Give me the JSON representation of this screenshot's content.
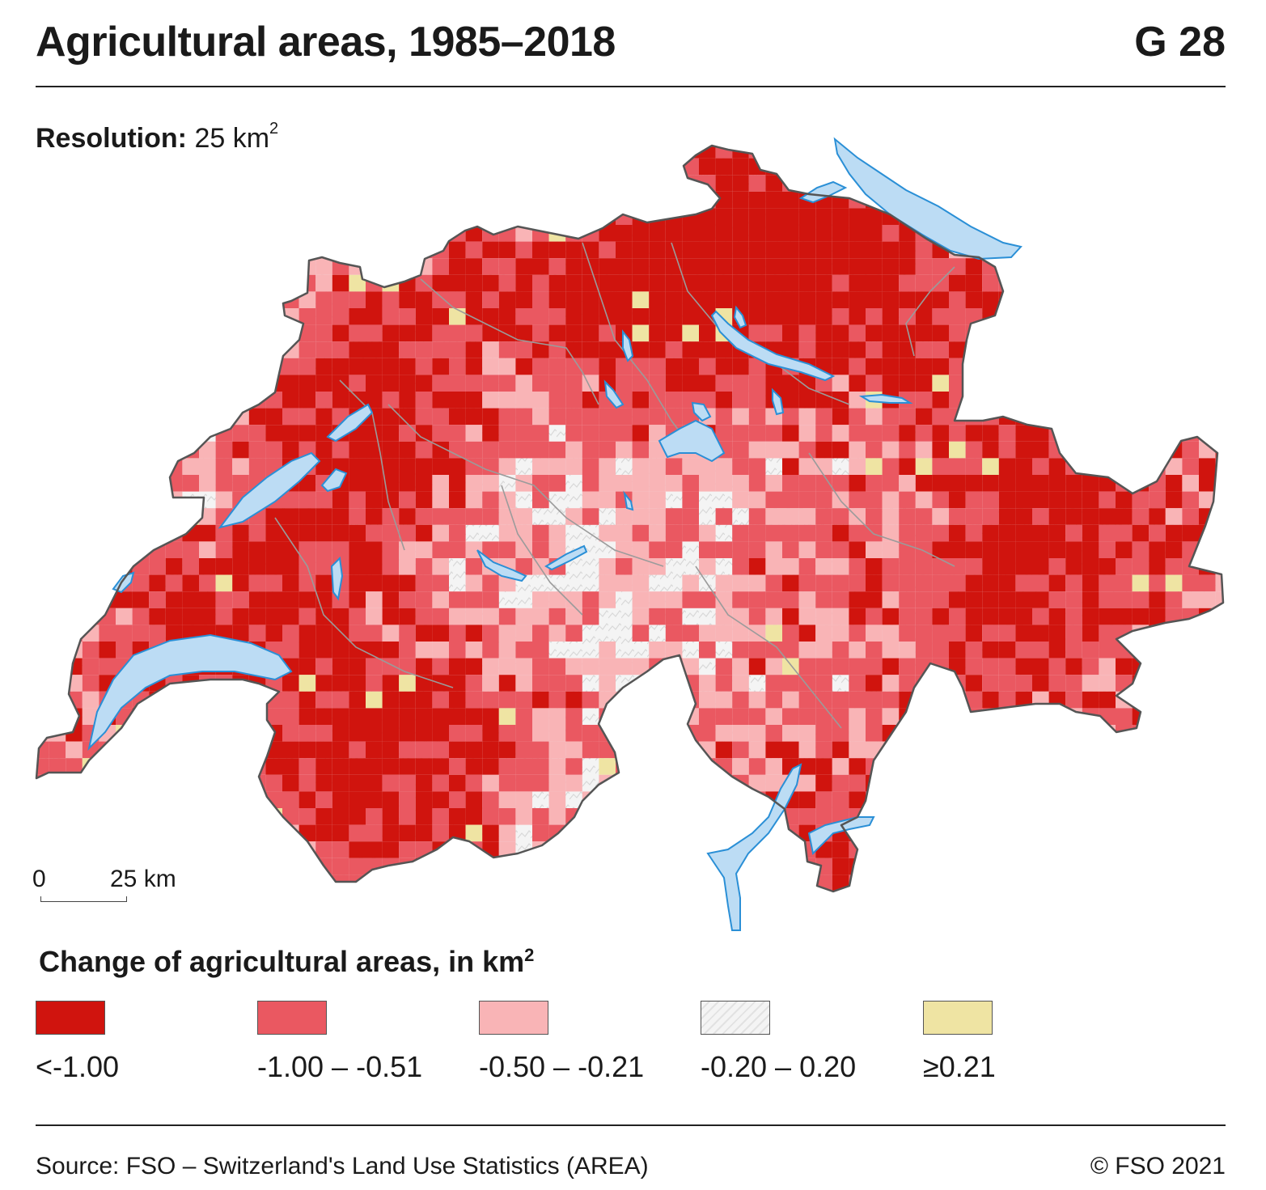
{
  "header": {
    "title": "Agricultural areas, 1985–2018",
    "code": "G 28"
  },
  "resolution": {
    "label": "Resolution:",
    "value": "25 km",
    "unit_sup": "2"
  },
  "scale_bar": {
    "start": "0",
    "end": "25 km"
  },
  "legend": {
    "title": "Change of agricultural areas, in km",
    "title_sup": "2",
    "classes": [
      {
        "label": "<-1.00",
        "color": "#d0140e"
      },
      {
        "label": "-1.00 – -0.51",
        "color": "#ea5861"
      },
      {
        "label": "-0.50 – -0.21",
        "color": "#f9b4b6"
      },
      {
        "label": "-0.20 – 0.20",
        "color": "#f4f4f4"
      },
      {
        "label": "≥0.21",
        "color": "#efe4a3"
      }
    ]
  },
  "map": {
    "country": "Switzerland",
    "lake_color": "#bcdcf4",
    "lake_outline": "#2a8fd6",
    "border_color": "#555555"
  },
  "footer": {
    "source": "Source: FSO – Switzerland's Land Use Statistics (AREA)",
    "copyright": "© FSO 2021"
  }
}
